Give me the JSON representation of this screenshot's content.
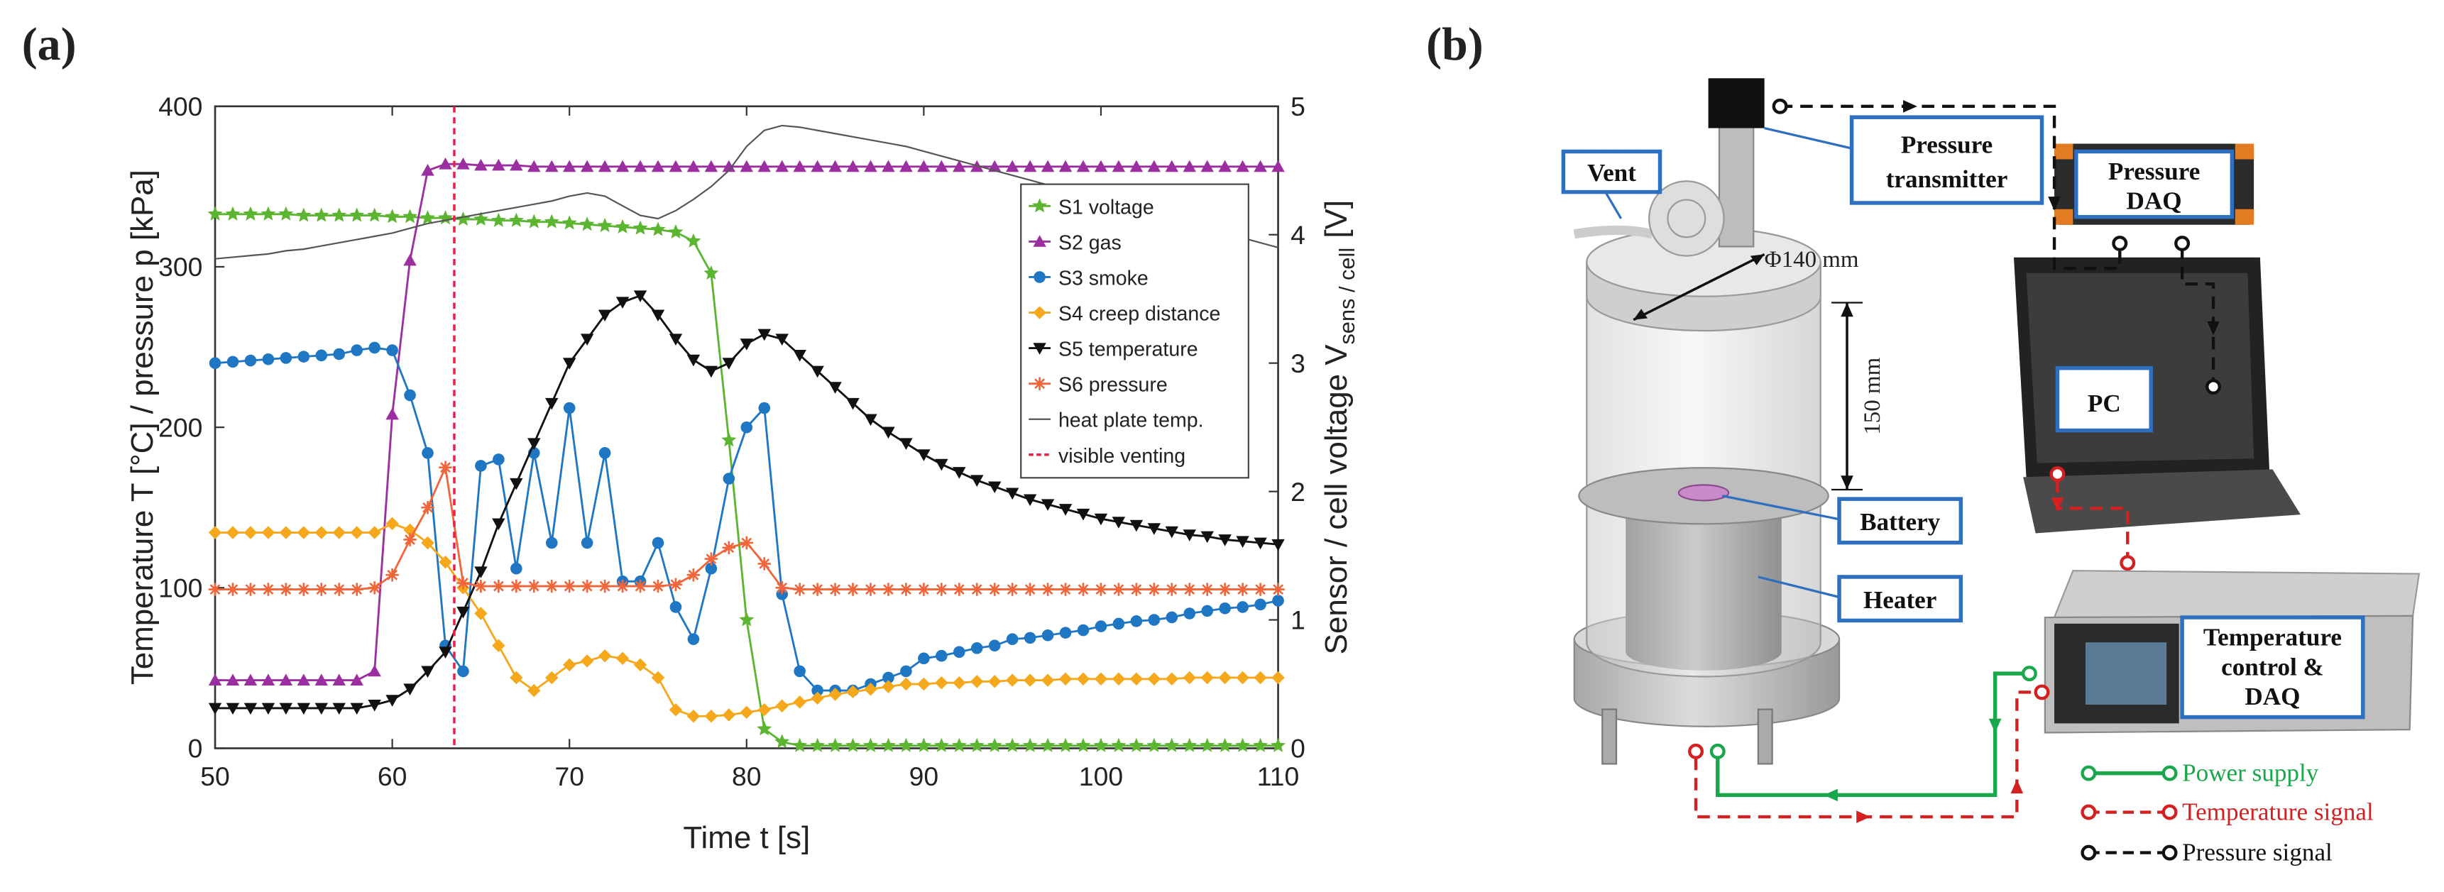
{
  "chart_data": {
    "type": "line",
    "panel_label": "(a)",
    "xlabel": "Time t [s]",
    "ylabel": "Temperature T [°C] / pressure p [kPa]",
    "y2label": {
      "main": "Sensor / cell voltage V",
      "sub": "sens / cell",
      "unit": "[V]"
    },
    "xlim": [
      50,
      110
    ],
    "xticks": [
      50,
      60,
      70,
      80,
      90,
      100,
      110
    ],
    "ylim": [
      0,
      400
    ],
    "yticks": [
      0,
      100,
      200,
      300,
      400
    ],
    "y2lim": [
      0,
      5
    ],
    "y2ticks": [
      0,
      1,
      2,
      3,
      4,
      5
    ],
    "x": [
      50,
      51,
      52,
      53,
      54,
      55,
      56,
      57,
      58,
      59,
      60,
      61,
      62,
      63,
      64,
      65,
      66,
      67,
      68,
      69,
      70,
      71,
      72,
      73,
      74,
      75,
      76,
      77,
      78,
      79,
      80,
      81,
      82,
      83,
      84,
      85,
      86,
      87,
      88,
      89,
      90,
      91,
      92,
      93,
      94,
      95,
      96,
      97,
      98,
      99,
      100,
      101,
      102,
      103,
      104,
      105,
      106,
      107,
      108,
      109,
      110
    ],
    "series": [
      {
        "name": "S1 voltage",
        "color": "#5cb531",
        "marker": "star",
        "axis": "y2",
        "values": [
          4.16,
          4.16,
          4.16,
          4.16,
          4.16,
          4.15,
          4.15,
          4.15,
          4.15,
          4.15,
          4.14,
          4.14,
          4.13,
          4.13,
          4.12,
          4.12,
          4.11,
          4.11,
          4.1,
          4.1,
          4.09,
          4.08,
          4.07,
          4.06,
          4.05,
          4.04,
          4.02,
          3.95,
          3.7,
          2.4,
          1.0,
          0.15,
          0.05,
          0.02,
          0.02,
          0.02,
          0.02,
          0.02,
          0.02,
          0.02,
          0.02,
          0.02,
          0.02,
          0.02,
          0.02,
          0.02,
          0.02,
          0.02,
          0.02,
          0.02,
          0.02,
          0.02,
          0.02,
          0.02,
          0.02,
          0.02,
          0.02,
          0.02,
          0.02,
          0.02,
          0.02
        ]
      },
      {
        "name": "S2 gas",
        "color": "#9b2fa0",
        "marker": "triangle-up",
        "axis": "y2",
        "values": [
          0.53,
          0.53,
          0.53,
          0.53,
          0.53,
          0.53,
          0.53,
          0.53,
          0.53,
          0.6,
          2.6,
          3.8,
          4.5,
          4.55,
          4.55,
          4.54,
          4.54,
          4.54,
          4.53,
          4.53,
          4.53,
          4.53,
          4.53,
          4.53,
          4.53,
          4.53,
          4.53,
          4.53,
          4.53,
          4.53,
          4.53,
          4.53,
          4.53,
          4.53,
          4.53,
          4.53,
          4.53,
          4.53,
          4.53,
          4.53,
          4.53,
          4.53,
          4.53,
          4.53,
          4.53,
          4.53,
          4.53,
          4.53,
          4.53,
          4.53,
          4.53,
          4.53,
          4.53,
          4.53,
          4.53,
          4.53,
          4.53,
          4.53,
          4.53,
          4.53,
          4.53
        ]
      },
      {
        "name": "S3 smoke",
        "color": "#1f77c4",
        "marker": "circle",
        "axis": "y2",
        "values": [
          3.0,
          3.01,
          3.02,
          3.03,
          3.04,
          3.05,
          3.06,
          3.07,
          3.1,
          3.12,
          3.1,
          2.75,
          2.3,
          0.8,
          0.6,
          2.2,
          2.25,
          1.4,
          2.3,
          1.6,
          2.65,
          1.6,
          2.3,
          1.3,
          1.3,
          1.6,
          1.1,
          0.85,
          1.4,
          2.1,
          2.5,
          2.65,
          1.2,
          0.6,
          0.45,
          0.45,
          0.45,
          0.5,
          0.55,
          0.6,
          0.7,
          0.72,
          0.75,
          0.78,
          0.8,
          0.85,
          0.86,
          0.88,
          0.9,
          0.92,
          0.95,
          0.97,
          0.99,
          1.0,
          1.02,
          1.05,
          1.07,
          1.09,
          1.1,
          1.12,
          1.15
        ]
      },
      {
        "name": "S4 creep distance",
        "color": "#f5a81c",
        "marker": "diamond",
        "axis": "y2",
        "values": [
          1.68,
          1.68,
          1.68,
          1.68,
          1.68,
          1.68,
          1.68,
          1.68,
          1.68,
          1.68,
          1.75,
          1.7,
          1.6,
          1.45,
          1.25,
          1.05,
          0.8,
          0.55,
          0.45,
          0.55,
          0.65,
          0.68,
          0.72,
          0.7,
          0.65,
          0.55,
          0.3,
          0.25,
          0.25,
          0.26,
          0.28,
          0.3,
          0.33,
          0.36,
          0.39,
          0.42,
          0.44,
          0.46,
          0.48,
          0.5,
          0.5,
          0.51,
          0.51,
          0.52,
          0.52,
          0.53,
          0.53,
          0.53,
          0.54,
          0.54,
          0.54,
          0.54,
          0.54,
          0.54,
          0.54,
          0.55,
          0.55,
          0.55,
          0.55,
          0.55,
          0.55
        ]
      },
      {
        "name": "S5 temperature",
        "color": "#111111",
        "marker": "triangle-down",
        "axis": "y",
        "values": [
          25,
          25,
          25,
          25,
          25,
          25,
          25,
          25,
          25,
          27,
          30,
          37,
          48,
          60,
          85,
          110,
          140,
          165,
          190,
          215,
          240,
          255,
          270,
          278,
          282,
          270,
          255,
          242,
          235,
          240,
          252,
          258,
          255,
          245,
          235,
          225,
          215,
          205,
          197,
          190,
          183,
          177,
          172,
          167,
          163,
          159,
          155,
          152,
          149,
          146,
          143,
          141,
          139,
          137,
          135,
          133,
          132,
          130,
          129,
          128,
          127
        ]
      },
      {
        "name": "S6 pressure",
        "color": "#f0653a",
        "marker": "asterisk",
        "axis": "y",
        "values": [
          99,
          99,
          99,
          99,
          99,
          99,
          99,
          99,
          99,
          100,
          108,
          130,
          150,
          175,
          103,
          101,
          101,
          101,
          101,
          101,
          101,
          101,
          101,
          101,
          101,
          101,
          102,
          108,
          118,
          125,
          128,
          115,
          100,
          99,
          99,
          99,
          99,
          99,
          99,
          99,
          99,
          99,
          99,
          99,
          99,
          99,
          99,
          99,
          99,
          99,
          99,
          99,
          99,
          99,
          99,
          99,
          99,
          99,
          99,
          99,
          99
        ]
      },
      {
        "name": "heat plate temp.",
        "color": "#555555",
        "axis": "y",
        "values": [
          305,
          306,
          307,
          308,
          310,
          311,
          313,
          315,
          317,
          319,
          321,
          324,
          327,
          329,
          331,
          333,
          335,
          337,
          339,
          341,
          344,
          346,
          344,
          338,
          332,
          330,
          335,
          342,
          350,
          360,
          375,
          385,
          388,
          387,
          385,
          383,
          381,
          379,
          377,
          375,
          372,
          369,
          366,
          363,
          360,
          357,
          354,
          351,
          348,
          345,
          342,
          339,
          336,
          333,
          330,
          327,
          324,
          321,
          318,
          315,
          312
        ]
      }
    ],
    "vline": {
      "name": "visible venting",
      "x": 63.5,
      "color": "#e8204a"
    }
  },
  "diagram": {
    "label": "(b)",
    "vent": "Vent",
    "pressure_transmitter": [
      "Pressure",
      "transmitter"
    ],
    "pressure_daq": [
      "Pressure",
      "DAQ"
    ],
    "diameter": "Φ140 mm",
    "height": "150 mm",
    "pc": "PC",
    "battery": "Battery",
    "heater": "Heater",
    "temperature_daq": [
      "Temperature",
      "control &",
      "DAQ"
    ],
    "legend": [
      "Power supply",
      "Temperature signal",
      "Pressure signal"
    ]
  }
}
